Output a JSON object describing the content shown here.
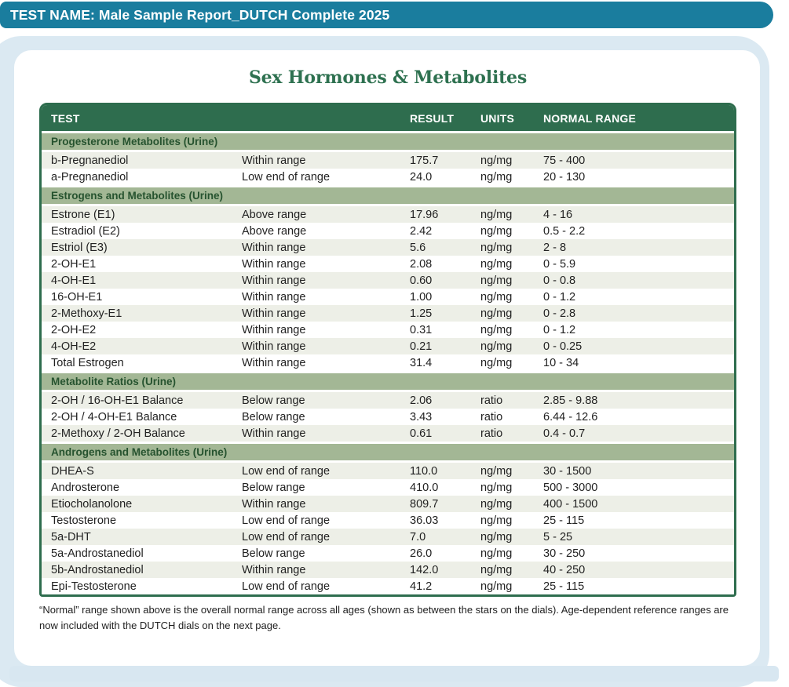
{
  "banner": {
    "title": "TEST NAME: Male Sample Report_DUTCH Complete 2025"
  },
  "page": {
    "title": "Sex Hormones & Metabolites"
  },
  "colors": {
    "banner_teal": "#1a7d9e",
    "panel_blue": "#dbe9f2",
    "table_header_green": "#2e6d4e",
    "section_bar_sage": "#a3b795",
    "section_text_green": "#26532f",
    "title_green": "#2e7150",
    "alt_row": "#edefe7"
  },
  "table": {
    "columns": [
      "TEST",
      "RESULT",
      "UNITS",
      "NORMAL RANGE"
    ],
    "sections": [
      {
        "label": "Progesterone Metabolites (Urine)",
        "rows": [
          {
            "test": "b-Pregnanediol",
            "status": "Within range",
            "result": "175.7",
            "units": "ng/mg",
            "range": "75 - 400"
          },
          {
            "test": "a-Pregnanediol",
            "status": "Low end of range",
            "result": "24.0",
            "units": "ng/mg",
            "range": "20 - 130"
          }
        ]
      },
      {
        "label": "Estrogens and Metabolites (Urine)",
        "rows": [
          {
            "test": "Estrone (E1)",
            "status": "Above range",
            "result": "17.96",
            "units": "ng/mg",
            "range": "4 - 16"
          },
          {
            "test": "Estradiol (E2)",
            "status": "Above range",
            "result": "2.42",
            "units": "ng/mg",
            "range": "0.5 - 2.2"
          },
          {
            "test": "Estriol (E3)",
            "status": "Within range",
            "result": "5.6",
            "units": "ng/mg",
            "range": "2 - 8"
          },
          {
            "test": "2-OH-E1",
            "status": "Within range",
            "result": "2.08",
            "units": "ng/mg",
            "range": "0 - 5.9"
          },
          {
            "test": "4-OH-E1",
            "status": "Within range",
            "result": "0.60",
            "units": "ng/mg",
            "range": "0 - 0.8"
          },
          {
            "test": "16-OH-E1",
            "status": "Within range",
            "result": "1.00",
            "units": "ng/mg",
            "range": "0 - 1.2"
          },
          {
            "test": "2-Methoxy-E1",
            "status": "Within range",
            "result": "1.25",
            "units": "ng/mg",
            "range": "0 - 2.8"
          },
          {
            "test": "2-OH-E2",
            "status": "Within range",
            "result": "0.31",
            "units": "ng/mg",
            "range": "0 - 1.2"
          },
          {
            "test": "4-OH-E2",
            "status": "Within range",
            "result": "0.21",
            "units": "ng/mg",
            "range": "0 - 0.25"
          },
          {
            "test": "Total Estrogen",
            "status": "Within range",
            "result": "31.4",
            "units": "ng/mg",
            "range": "10 - 34"
          }
        ]
      },
      {
        "label": "Metabolite Ratios (Urine)",
        "rows": [
          {
            "test": "2-OH / 16-OH-E1 Balance",
            "status": "Below range",
            "result": "2.06",
            "units": "ratio",
            "range": "2.85 - 9.88"
          },
          {
            "test": "2-OH / 4-OH-E1 Balance",
            "status": "Below range",
            "result": "3.43",
            "units": "ratio",
            "range": "6.44 - 12.6"
          },
          {
            "test": "2-Methoxy / 2-OH Balance",
            "status": "Within range",
            "result": "0.61",
            "units": "ratio",
            "range": "0.4 - 0.7"
          }
        ]
      },
      {
        "label": "Androgens and Metabolites (Urine)",
        "rows": [
          {
            "test": "DHEA-S",
            "status": "Low end of range",
            "result": "110.0",
            "units": "ng/mg",
            "range": "30 - 1500"
          },
          {
            "test": "Androsterone",
            "status": "Below range",
            "result": "410.0",
            "units": "ng/mg",
            "range": "500 - 3000"
          },
          {
            "test": "Etiocholanolone",
            "status": "Within range",
            "result": "809.7",
            "units": "ng/mg",
            "range": "400 - 1500"
          },
          {
            "test": "Testosterone",
            "status": "Low end of range",
            "result": "36.03",
            "units": "ng/mg",
            "range": "25 - 115"
          },
          {
            "test": "5a-DHT",
            "status": "Low end of range",
            "result": "7.0",
            "units": "ng/mg",
            "range": "5 - 25"
          },
          {
            "test": "5a-Androstanediol",
            "status": "Below range",
            "result": "26.0",
            "units": "ng/mg",
            "range": "30 - 250"
          },
          {
            "test": "5b-Androstanediol",
            "status": "Within range",
            "result": "142.0",
            "units": "ng/mg",
            "range": "40 - 250"
          },
          {
            "test": "Epi-Testosterone",
            "status": "Low end of range",
            "result": "41.2",
            "units": "ng/mg",
            "range": "25 - 115"
          }
        ]
      }
    ]
  },
  "footnote": "“Normal” range shown above is the overall normal range across all ages (shown as between the stars on the dials). Age-dependent reference ranges are now included with the DUTCH dials on the next page."
}
